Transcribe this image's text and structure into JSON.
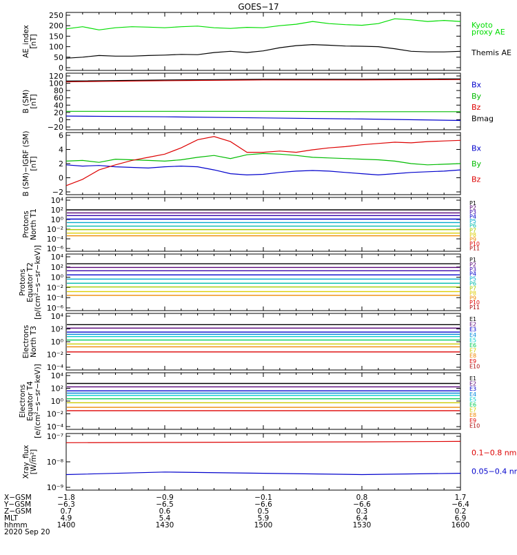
{
  "title": "GOES−17",
  "panels": [
    {
      "id": "ae",
      "ylabel": [
        "AE_index",
        "[nT]"
      ],
      "ticks": [
        "0",
        "50",
        "100",
        "150",
        "200",
        "250"
      ],
      "legend": [
        {
          "text": "Kyoto",
          "color": "#00dd00"
        },
        {
          "text": "proxy AE",
          "color": "#00dd00"
        },
        {
          "text": "Themis AE",
          "color": "#000000"
        }
      ]
    },
    {
      "id": "bsm",
      "ylabel": [
        "B (SM)",
        "[nT]"
      ],
      "ticks": [
        "−20",
        "0",
        "20",
        "40",
        "60",
        "80",
        "100",
        "120"
      ],
      "legend": [
        {
          "text": "Bx",
          "color": "#0000cc"
        },
        {
          "text": "By",
          "color": "#00bb00"
        },
        {
          "text": "Bz",
          "color": "#dd0000"
        },
        {
          "text": "Bmag",
          "color": "#000000"
        }
      ]
    },
    {
      "id": "bigrf",
      "ylabel": [
        "B (SM)−IGRF (SM)",
        "[nT]"
      ],
      "ticks": [
        "−2",
        "0",
        "2",
        "4",
        "6"
      ],
      "legend": [
        {
          "text": "Bx",
          "color": "#0000cc"
        },
        {
          "text": "By",
          "color": "#00bb00"
        },
        {
          "text": "Bz",
          "color": "#dd0000"
        }
      ]
    },
    {
      "id": "pnt1",
      "ylabel": [
        "Protons",
        "North T1"
      ],
      "ticks": [
        "10⁻⁶",
        "10⁻⁴",
        "10⁻²",
        "10⁰",
        "10²",
        "10⁴"
      ],
      "channels": [
        "P1",
        "P2",
        "P3",
        "P4",
        "P5",
        "P6",
        "P7",
        "P8",
        "P9",
        "P10",
        "P11"
      ]
    },
    {
      "id": "peqt2",
      "ylabel": [
        "Protons",
        "Equator T2",
        "[p/(cm²−s−sr−keV)]"
      ],
      "ticks": [
        "10⁻⁶",
        "10⁻⁴",
        "10⁻²",
        "10⁰",
        "10²",
        "10⁴"
      ],
      "channels": [
        "P1",
        "P2",
        "P3",
        "P4",
        "P5",
        "P6",
        "P7",
        "P8",
        "P9",
        "P10",
        "P11"
      ]
    },
    {
      "id": "ent3",
      "ylabel": [
        "Electrons",
        "North T3"
      ],
      "ticks": [
        "10⁻⁴",
        "10⁻²",
        "10⁰",
        "10²",
        "10⁴"
      ],
      "channels": [
        "E1",
        "E2",
        "E3",
        "E4",
        "E5",
        "E6",
        "E7",
        "E8",
        "E9",
        "E10"
      ]
    },
    {
      "id": "eeqt4",
      "ylabel": [
        "Electrons",
        "Equator T4",
        "[e/(cm²−s−sr−keV)]"
      ],
      "ticks": [
        "10⁻⁴",
        "10⁻²",
        "10⁰",
        "10²",
        "10⁴"
      ],
      "channels": [
        "E1",
        "E2",
        "E3",
        "E4",
        "E5",
        "E6",
        "E7",
        "E8",
        "E9",
        "E10"
      ]
    },
    {
      "id": "xray",
      "ylabel": [
        "Xray_flux",
        "[W/m²]"
      ],
      "ticks": [
        "10⁻⁹",
        "10⁻⁸",
        "10⁻⁷"
      ],
      "legend": [
        {
          "text": "0.1−0.8 nm",
          "color": "#dd0000"
        },
        {
          "text": "0.05−0.4 nm",
          "color": "#0000cc"
        }
      ]
    }
  ],
  "channel_colors": {
    "P": [
      "#000000",
      "#550077",
      "#3300aa",
      "#0000cc",
      "#00aacc",
      "#00bbaa",
      "#aacc00",
      "#ddcc00",
      "#ee8800",
      "#dd0000",
      "#aa0000"
    ],
    "E": [
      "#000000",
      "#550077",
      "#0000cc",
      "#0088dd",
      "#00cccc",
      "#00cc55",
      "#cccc00",
      "#ee8800",
      "#dd0000",
      "#aa0000"
    ]
  },
  "xaxis": {
    "labels": [
      "X−GSM",
      "Y−GSM",
      "Z−GSM",
      "MLT",
      "hhmm"
    ],
    "columns": [
      [
        "−1.8",
        "−6.3",
        "0.7",
        "4.9",
        "1400"
      ],
      [
        "−0.9",
        "−6.5",
        "0.6",
        "5.4",
        "1430"
      ],
      [
        "−0.1",
        "−6.6",
        "0.5",
        "5.9",
        "1500"
      ],
      [
        "0.8",
        "−6.6",
        "0.3",
        "6.4",
        "1530"
      ],
      [
        "1.7",
        "−6.4",
        "0.2",
        "6.9",
        "1600"
      ]
    ],
    "date": "2020 Sep 20"
  },
  "chart_data": {
    "type": "line",
    "title": "GOES−17",
    "x_time_hhmm": [
      "1400",
      "1430",
      "1500",
      "1530",
      "1600"
    ],
    "panels": [
      {
        "id": "ae",
        "ylim": [
          0,
          250
        ],
        "series": [
          {
            "name": "Kyoto proxy AE",
            "color": "#00dd00",
            "x": [
              1400,
              1405,
              1410,
              1415,
              1420,
              1425,
              1430,
              1435,
              1440,
              1445,
              1450,
              1455,
              1500,
              1505,
              1510,
              1515,
              1520,
              1525,
              1530,
              1535,
              1540,
              1545,
              1550,
              1555,
              1600
            ],
            "y": [
              185,
              195,
              180,
              190,
              195,
              193,
              190,
              195,
              198,
              190,
              187,
              192,
              190,
              200,
              207,
              220,
              210,
              205,
              202,
              210,
              233,
              228,
              220,
              225,
              220
            ]
          },
          {
            "name": "Themis AE",
            "color": "#000000",
            "x": [
              1400,
              1405,
              1410,
              1415,
              1420,
              1425,
              1430,
              1435,
              1440,
              1445,
              1450,
              1455,
              1500,
              1505,
              1510,
              1515,
              1520,
              1525,
              1530,
              1535,
              1540,
              1545,
              1550,
              1555,
              1600
            ],
            "y": [
              45,
              50,
              58,
              55,
              55,
              58,
              60,
              63,
              62,
              72,
              78,
              72,
              80,
              95,
              105,
              110,
              107,
              103,
              102,
              100,
              90,
              78,
              75,
              75,
              78
            ]
          }
        ]
      },
      {
        "id": "bsm",
        "ylim": [
          -20,
          120
        ],
        "series": [
          {
            "name": "Bx",
            "color": "#0000cc",
            "x": [
              1400,
              1430,
              1500,
              1530,
              1600
            ],
            "y": [
              10,
              8,
              5,
              2,
              -2
            ]
          },
          {
            "name": "By",
            "color": "#00bb00",
            "x": [
              1400,
              1430,
              1500,
              1530,
              1600
            ],
            "y": [
              23,
              23,
              23,
              22,
              22
            ]
          },
          {
            "name": "Bz",
            "color": "#dd0000",
            "x": [
              1400,
              1430,
              1500,
              1530,
              1600
            ],
            "y": [
              104,
              107,
              109,
              109,
              110
            ]
          },
          {
            "name": "Bmag",
            "color": "#000000",
            "x": [
              1400,
              1430,
              1500,
              1530,
              1600
            ],
            "y": [
              106,
              109,
              111,
              111,
              112
            ]
          }
        ]
      },
      {
        "id": "bigrf",
        "ylim": [
          -2.5,
          6.5
        ],
        "series": [
          {
            "name": "Bx",
            "color": "#0000cc",
            "x": [
              1400,
              1405,
              1410,
              1415,
              1420,
              1425,
              1430,
              1435,
              1440,
              1445,
              1450,
              1455,
              1500,
              1505,
              1510,
              1515,
              1520,
              1525,
              1530,
              1535,
              1540,
              1545,
              1550,
              1555,
              1600
            ],
            "y": [
              1.8,
              1.6,
              1.7,
              1.5,
              1.4,
              1.3,
              1.5,
              1.6,
              1.5,
              1.0,
              0.4,
              0.2,
              0.3,
              0.6,
              0.8,
              0.9,
              0.8,
              0.6,
              0.4,
              0.2,
              0.4,
              0.6,
              0.7,
              0.8,
              1.0
            ]
          },
          {
            "name": "By",
            "color": "#00bb00",
            "x": [
              1400,
              1405,
              1410,
              1415,
              1420,
              1425,
              1430,
              1435,
              1440,
              1445,
              1450,
              1455,
              1500,
              1505,
              1510,
              1515,
              1520,
              1525,
              1530,
              1535,
              1540,
              1545,
              1550,
              1555,
              1600
            ],
            "y": [
              2.4,
              2.5,
              2.2,
              2.7,
              2.6,
              2.5,
              2.4,
              2.6,
              3.0,
              3.3,
              2.8,
              3.4,
              3.6,
              3.5,
              3.3,
              3.0,
              2.9,
              2.8,
              2.7,
              2.6,
              2.4,
              2.0,
              1.8,
              1.9,
              2.0
            ]
          },
          {
            "name": "Bz",
            "color": "#dd0000",
            "x": [
              1400,
              1405,
              1410,
              1415,
              1420,
              1425,
              1430,
              1435,
              1440,
              1445,
              1450,
              1455,
              1500,
              1505,
              1510,
              1515,
              1520,
              1525,
              1530,
              1535,
              1540,
              1545,
              1550,
              1555,
              1600
            ],
            "y": [
              -1.5,
              -0.5,
              1.0,
              1.8,
              2.5,
              3.0,
              3.5,
              4.5,
              5.8,
              6.3,
              5.5,
              3.8,
              3.8,
              4.0,
              3.8,
              4.2,
              4.5,
              4.7,
              5.0,
              5.2,
              5.4,
              5.3,
              5.5,
              5.6,
              5.7
            ]
          }
        ]
      },
      {
        "id": "pnt1",
        "ylim_log10": [
          -6.5,
          4.5
        ],
        "series": [
          {
            "name": "P1",
            "log10_level": 2.3
          },
          {
            "name": "P2",
            "log10_level": 1.6
          },
          {
            "name": "P3",
            "log10_level": 1.0
          },
          {
            "name": "P4",
            "log10_level": 0.2
          },
          {
            "name": "P5",
            "log10_level": -0.6
          },
          {
            "name": "P6",
            "log10_level": -1.4
          },
          {
            "name": "P7",
            "log10_level": -2.2
          },
          {
            "name": "P8",
            "log10_level": -3.0
          },
          {
            "name": "P9",
            "log10_level": -3.6
          }
        ]
      },
      {
        "id": "peqt2",
        "ylim_log10": [
          -6.5,
          4.5
        ],
        "series": [
          {
            "name": "P1",
            "log10_level": 3.0
          },
          {
            "name": "P2",
            "log10_level": 2.2
          },
          {
            "name": "P3",
            "log10_level": 1.5
          },
          {
            "name": "P4",
            "log10_level": 0.6
          },
          {
            "name": "P5",
            "log10_level": -0.3
          },
          {
            "name": "P6",
            "log10_level": -1.2
          },
          {
            "name": "P7",
            "log10_level": -2.0
          },
          {
            "name": "P8",
            "log10_level": -3.0
          },
          {
            "name": "P9",
            "log10_level": -3.8
          }
        ]
      },
      {
        "id": "ent3",
        "ylim_log10": [
          -4.5,
          4.5
        ],
        "series": [
          {
            "name": "E1",
            "log10_level": 3.0
          },
          {
            "name": "E2",
            "log10_level": 2.4
          },
          {
            "name": "E3",
            "log10_level": 1.7
          },
          {
            "name": "E4",
            "log10_level": 1.3
          },
          {
            "name": "E5",
            "log10_level": 0.9
          },
          {
            "name": "E6",
            "log10_level": 0.3
          },
          {
            "name": "E7",
            "log10_level": -0.4
          },
          {
            "name": "E8",
            "log10_level": -0.9
          },
          {
            "name": "E9",
            "log10_level": -1.8
          }
        ]
      },
      {
        "id": "eeqt4",
        "ylim_log10": [
          -4.5,
          4.5
        ],
        "series": [
          {
            "name": "E1",
            "log10_level": 3.1
          },
          {
            "name": "E2",
            "log10_level": 2.5
          },
          {
            "name": "E3",
            "log10_level": 1.8
          },
          {
            "name": "E4",
            "log10_level": 1.4
          },
          {
            "name": "E5",
            "log10_level": 1.0
          },
          {
            "name": "E6",
            "log10_level": 0.4
          },
          {
            "name": "E7",
            "log10_level": -0.3
          },
          {
            "name": "E8",
            "log10_level": -1.1
          },
          {
            "name": "E9",
            "log10_level": -1.7
          }
        ]
      },
      {
        "id": "xray",
        "ylim_log10": [
          -9,
          -7
        ],
        "series": [
          {
            "name": "0.1−0.8 nm",
            "color": "#dd0000",
            "x": [
              1400,
              1430,
              1500,
              1530,
              1600
            ],
            "y_log10": [
              -7.25,
              -7.24,
              -7.23,
              -7.22,
              -7.2
            ]
          },
          {
            "name": "0.05−0.4 nm",
            "color": "#0000cc",
            "x": [
              1400,
              1430,
              1500,
              1530,
              1600
            ],
            "y_log10": [
              -8.5,
              -8.4,
              -8.45,
              -8.5,
              -8.45
            ]
          }
        ]
      }
    ]
  }
}
